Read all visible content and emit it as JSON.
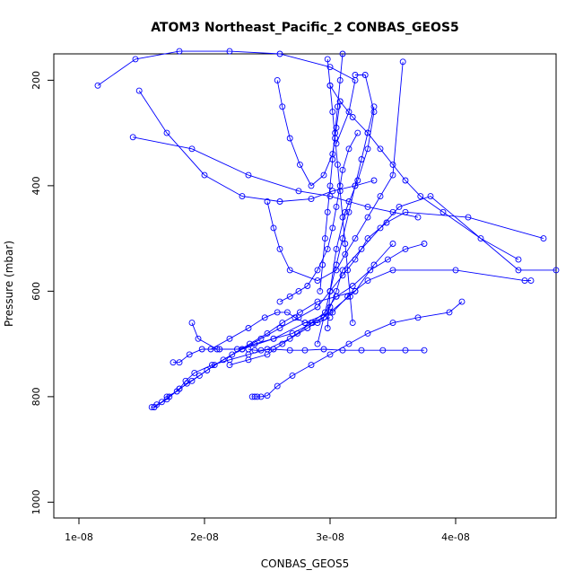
{
  "chart_data": {
    "type": "line",
    "title": "ATOM3 Northeast_Pacific_2 CONBAS_GEOS5",
    "xlabel": "CONBAS_GEOS5",
    "ylabel": "Pressure (mbar)",
    "xlim": [
      8e-09,
      4.8e-08
    ],
    "ylim": [
      1030,
      150
    ],
    "y_inverted": true,
    "x_ticks": [
      {
        "value": 1e-08,
        "label": "1e-08"
      },
      {
        "value": 2e-08,
        "label": "2e-08"
      },
      {
        "value": 3e-08,
        "label": "3e-08"
      },
      {
        "value": 4e-08,
        "label": "4e-08"
      }
    ],
    "y_ticks": [
      {
        "value": 200,
        "label": "200"
      },
      {
        "value": 400,
        "label": "400"
      },
      {
        "value": 600,
        "label": "600"
      },
      {
        "value": 800,
        "label": "800"
      },
      {
        "value": 1000,
        "label": "1000"
      }
    ],
    "grid": false,
    "legend": "none",
    "marker": "open-circle",
    "color": "#0000ff",
    "series": [
      {
        "x": [
          1.58e-08,
          1.6e-08,
          1.62e-08,
          1.66e-08,
          1.72e-08,
          1.8e-08,
          1.85e-08,
          1.92e-08,
          2.06e-08,
          2.2e-08,
          2.35e-08,
          2.5e-08,
          2.68e-08,
          2.82e-08,
          2.95e-08,
          3e-08,
          3.05e-08,
          3.1e-08,
          3.25e-08,
          3.4e-08,
          3.55e-08,
          3.8e-08,
          4.5e-08,
          4.8e-08
        ],
        "y": [
          820,
          820,
          815,
          810,
          800,
          785,
          770,
          755,
          740,
          730,
          720,
          710,
          690,
          670,
          650,
          630,
          600,
          560,
          520,
          480,
          440,
          420,
          560,
          560
        ]
      },
      {
        "x": [
          1.6e-08,
          1.7e-08,
          1.8e-08,
          1.9e-08,
          2.02e-08,
          2.15e-08,
          2.3e-08,
          2.45e-08,
          2.6e-08,
          2.75e-08,
          2.9e-08,
          3e-08,
          3.1e-08,
          3.2e-08,
          3.3e-08,
          3.45e-08,
          3.6e-08,
          4.1e-08,
          4.7e-08
        ],
        "y": [
          820,
          805,
          785,
          770,
          750,
          730,
          710,
          690,
          670,
          650,
          630,
          600,
          570,
          540,
          500,
          470,
          450,
          460,
          500
        ]
      },
      {
        "x": [
          1.75e-08,
          1.8e-08,
          1.88e-08,
          1.98e-08,
          2.12e-08,
          2.26e-08,
          2.4e-08,
          2.55e-08,
          2.7e-08,
          2.86e-08,
          3.02e-08,
          3.14e-08,
          3.3e-08,
          3.5e-08,
          4e-08,
          4.55e-08,
          4.6e-08
        ],
        "y": [
          735,
          735,
          720,
          710,
          710,
          710,
          700,
          690,
          680,
          660,
          640,
          610,
          580,
          560,
          560,
          580,
          580
        ]
      },
      {
        "x": [
          1.9e-08,
          1.95e-08,
          2.1e-08,
          2.3e-08,
          2.55e-08,
          2.8e-08,
          3e-08,
          3.2e-08,
          3.35e-08,
          3.5e-08
        ],
        "y": [
          660,
          690,
          710,
          710,
          690,
          660,
          640,
          600,
          550,
          510
        ]
      },
      {
        "x": [
          2.38e-08,
          2.4e-08,
          2.42e-08,
          2.45e-08,
          2.5e-08,
          2.58e-08,
          2.7e-08,
          2.85e-08,
          3e-08,
          3.15e-08,
          3.3e-08,
          3.5e-08,
          3.7e-08,
          3.95e-08,
          4.05e-08
        ],
        "y": [
          800,
          800,
          800,
          800,
          798,
          780,
          760,
          740,
          720,
          700,
          680,
          660,
          650,
          640,
          620
        ]
      },
      {
        "x": [
          2.35e-08,
          2.4e-08,
          2.45e-08,
          2.55e-08,
          2.68e-08,
          2.8e-08,
          2.95e-08,
          3.1e-08,
          3.25e-08,
          3.42e-08,
          3.6e-08,
          3.75e-08
        ],
        "y": [
          710,
          712,
          712,
          710,
          712,
          712,
          710,
          712,
          712,
          712,
          712,
          712
        ]
      },
      {
        "x": [
          2.2e-08,
          2.35e-08,
          2.5e-08,
          2.62e-08,
          2.74e-08,
          2.85e-08,
          2.96e-08,
          3.05e-08,
          3.18e-08,
          3.32e-08,
          3.46e-08,
          3.6e-08,
          3.75e-08
        ],
        "y": [
          740,
          730,
          720,
          700,
          680,
          660,
          640,
          610,
          590,
          560,
          540,
          520,
          510
        ]
      },
      {
        "x": [
          2.6e-08,
          2.68e-08,
          2.75e-08,
          2.82e-08,
          2.9e-08,
          2.98e-08,
          3.02e-08,
          3.05e-08,
          3.08e-08,
          3.1e-08,
          3.15e-08,
          3.22e-08
        ],
        "y": [
          620,
          610,
          600,
          590,
          560,
          520,
          480,
          440,
          400,
          370,
          330,
          300
        ]
      },
      {
        "x": [
          1.15e-08,
          1.45e-08,
          1.8e-08,
          2.2e-08,
          2.6e-08,
          3e-08,
          3.2e-08,
          3.15e-08,
          3.05e-08
        ],
        "y": [
          210,
          160,
          145,
          145,
          150,
          175,
          200,
          260,
          320
        ]
      },
      {
        "x": [
          1.43e-08,
          1.9e-08,
          2.35e-08,
          2.75e-08,
          3e-08,
          3.15e-08,
          3.3e-08,
          3.5e-08,
          3.7e-08
        ],
        "y": [
          308,
          330,
          380,
          410,
          420,
          430,
          440,
          450,
          460
        ]
      },
      {
        "x": [
          1.48e-08,
          1.7e-08,
          2e-08,
          2.3e-08,
          2.6e-08,
          2.85e-08,
          3.02e-08,
          3.2e-08,
          3.35e-08
        ],
        "y": [
          220,
          300,
          380,
          420,
          430,
          425,
          410,
          400,
          390
        ]
      },
      {
        "x": [
          2.5e-08,
          2.55e-08,
          2.6e-08,
          2.68e-08,
          2.9e-08,
          3.05e-08,
          3.12e-08,
          3.2e-08,
          3.3e-08,
          3.4e-08,
          3.5e-08,
          3.58e-08
        ],
        "y": [
          430,
          480,
          520,
          560,
          580,
          560,
          530,
          500,
          460,
          420,
          380,
          165
        ]
      },
      {
        "x": [
          2.58e-08,
          2.62e-08,
          2.68e-08,
          2.76e-08,
          2.85e-08,
          2.95e-08,
          3.02e-08,
          3.05e-08,
          3.08e-08
        ],
        "y": [
          200,
          250,
          310,
          360,
          400,
          380,
          340,
          290,
          240
        ]
      },
      {
        "x": [
          2.98e-08,
          3e-08,
          3.02e-08,
          3.04e-08,
          3.06e-08,
          3.08e-08,
          3.1e-08,
          3.12e-08,
          3.14e-08,
          3.16e-08,
          3.18e-08
        ],
        "y": [
          160,
          210,
          260,
          310,
          360,
          410,
          460,
          510,
          560,
          610,
          660
        ]
      },
      {
        "x": [
          3.1e-08,
          3.08e-08,
          3.06e-08,
          3.04e-08,
          3.02e-08,
          3e-08,
          2.98e-08,
          2.96e-08,
          2.94e-08,
          2.92e-08
        ],
        "y": [
          150,
          200,
          250,
          300,
          350,
          400,
          450,
          500,
          550,
          600
        ]
      },
      {
        "x": [
          2.9e-08,
          2.95e-08,
          3e-08,
          3.05e-08,
          3.1e-08,
          3.15e-08,
          3.2e-08,
          3.25e-08,
          3.3e-08,
          3.35e-08
        ],
        "y": [
          700,
          650,
          600,
          550,
          500,
          450,
          400,
          350,
          300,
          250
        ]
      },
      {
        "x": [
          3.2e-08,
          3.28e-08,
          3.35e-08,
          3.3e-08,
          3.22e-08,
          3.12e-08,
          3.05e-08,
          3e-08,
          2.98e-08
        ],
        "y": [
          190,
          190,
          260,
          330,
          390,
          450,
          520,
          600,
          670
        ]
      },
      {
        "x": [
          3e-08,
          3.08e-08,
          3.18e-08,
          3.3e-08,
          3.4e-08,
          3.5e-08,
          3.6e-08,
          3.72e-08,
          3.9e-08,
          4.2e-08,
          4.5e-08
        ],
        "y": [
          210,
          240,
          270,
          300,
          330,
          360,
          390,
          420,
          450,
          500,
          540
        ]
      },
      {
        "x": [
          2.05e-08,
          2.2e-08,
          2.35e-08,
          2.48e-08,
          2.58e-08,
          2.66e-08,
          2.72e-08,
          2.8e-08,
          2.9e-08,
          3e-08
        ],
        "y": [
          710,
          690,
          670,
          650,
          640,
          640,
          650,
          660,
          660,
          650
        ]
      },
      {
        "x": [
          1.7e-08,
          1.78e-08,
          1.86e-08,
          1.96e-08,
          2.08e-08,
          2.22e-08,
          2.36e-08,
          2.5e-08,
          2.62e-08,
          2.76e-08,
          2.9e-08,
          3.05e-08,
          3.2e-08
        ],
        "y": [
          800,
          790,
          775,
          760,
          740,
          720,
          700,
          680,
          660,
          640,
          620,
          610,
          600
        ]
      }
    ]
  }
}
